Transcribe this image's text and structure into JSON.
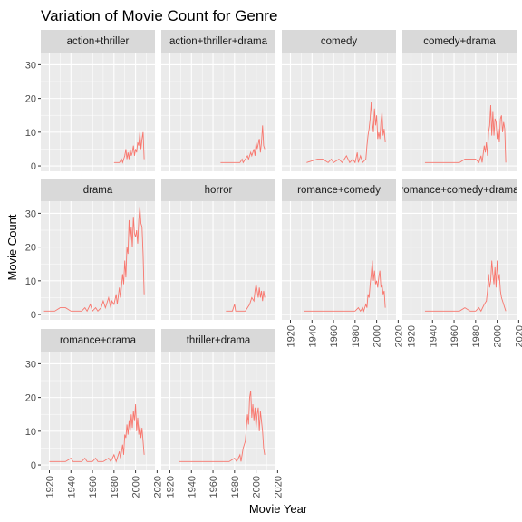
{
  "chart_data": {
    "type": "line",
    "title": "Variation of Movie Count for Genre",
    "xlabel": "Movie Year",
    "ylabel": "Movie Count",
    "xlim": [
      1912,
      2018
    ],
    "ylim": [
      -1.6,
      33.6
    ],
    "x_ticks": [
      1920,
      1940,
      1960,
      1980,
      2000,
      2020
    ],
    "y_ticks": [
      0,
      10,
      20,
      30
    ],
    "grid": true,
    "line_color": "#F8766D",
    "panel_bg": "#EBEBEB",
    "strip_bg": "#D9D9D9",
    "facets": [
      {
        "label": "action+thriller",
        "points": [
          [
            1980,
            1
          ],
          [
            1985,
            1
          ],
          [
            1987,
            2
          ],
          [
            1988,
            1
          ],
          [
            1990,
            3
          ],
          [
            1991,
            5
          ],
          [
            1992,
            2
          ],
          [
            1993,
            4
          ],
          [
            1994,
            2
          ],
          [
            1995,
            5
          ],
          [
            1996,
            3
          ],
          [
            1997,
            4
          ],
          [
            1998,
            6
          ],
          [
            1999,
            3
          ],
          [
            2000,
            5
          ],
          [
            2001,
            4
          ],
          [
            2002,
            7
          ],
          [
            2003,
            6
          ],
          [
            2004,
            10
          ],
          [
            2005,
            5
          ],
          [
            2006,
            8
          ],
          [
            2007,
            10
          ],
          [
            2008,
            2
          ]
        ]
      },
      {
        "label": "action+thriller+drama",
        "points": [
          [
            1967,
            1
          ],
          [
            1985,
            1
          ],
          [
            1987,
            2
          ],
          [
            1988,
            1
          ],
          [
            1990,
            2
          ],
          [
            1992,
            3
          ],
          [
            1993,
            2
          ],
          [
            1995,
            4
          ],
          [
            1996,
            3
          ],
          [
            1998,
            5
          ],
          [
            1999,
            3
          ],
          [
            2000,
            7
          ],
          [
            2001,
            5
          ],
          [
            2003,
            8
          ],
          [
            2004,
            4
          ],
          [
            2005,
            7
          ],
          [
            2006,
            12
          ],
          [
            2007,
            6
          ],
          [
            2008,
            5
          ]
        ]
      },
      {
        "label": "comedy",
        "points": [
          [
            1935,
            1
          ],
          [
            1945,
            2
          ],
          [
            1950,
            2
          ],
          [
            1955,
            1
          ],
          [
            1958,
            2
          ],
          [
            1960,
            1
          ],
          [
            1965,
            2
          ],
          [
            1968,
            1
          ],
          [
            1970,
            2
          ],
          [
            1972,
            3
          ],
          [
            1975,
            1
          ],
          [
            1978,
            2
          ],
          [
            1980,
            1
          ],
          [
            1982,
            4
          ],
          [
            1983,
            1
          ],
          [
            1985,
            3
          ],
          [
            1987,
            1
          ],
          [
            1990,
            2
          ],
          [
            1991,
            6
          ],
          [
            1992,
            9
          ],
          [
            1993,
            11
          ],
          [
            1994,
            14
          ],
          [
            1995,
            19
          ],
          [
            1996,
            13
          ],
          [
            1997,
            10
          ],
          [
            1998,
            17
          ],
          [
            1999,
            12
          ],
          [
            2000,
            15
          ],
          [
            2001,
            8
          ],
          [
            2002,
            10
          ],
          [
            2003,
            8
          ],
          [
            2004,
            13
          ],
          [
            2005,
            16
          ],
          [
            2006,
            9
          ],
          [
            2007,
            11
          ],
          [
            2008,
            7
          ]
        ]
      },
      {
        "label": "comedy+drama",
        "points": [
          [
            1933,
            1
          ],
          [
            1950,
            1
          ],
          [
            1955,
            1
          ],
          [
            1960,
            1
          ],
          [
            1965,
            1
          ],
          [
            1970,
            2
          ],
          [
            1975,
            2
          ],
          [
            1980,
            2
          ],
          [
            1983,
            1
          ],
          [
            1985,
            3
          ],
          [
            1986,
            1
          ],
          [
            1988,
            6
          ],
          [
            1989,
            4
          ],
          [
            1990,
            7
          ],
          [
            1991,
            3
          ],
          [
            1992,
            10
          ],
          [
            1993,
            12
          ],
          [
            1994,
            18
          ],
          [
            1995,
            9
          ],
          [
            1996,
            16
          ],
          [
            1997,
            9
          ],
          [
            1998,
            14
          ],
          [
            1999,
            13
          ],
          [
            2000,
            8
          ],
          [
            2001,
            11
          ],
          [
            2002,
            7
          ],
          [
            2003,
            14
          ],
          [
            2004,
            15
          ],
          [
            2005,
            10
          ],
          [
            2006,
            13
          ],
          [
            2007,
            11
          ],
          [
            2008,
            1
          ]
        ]
      },
      {
        "label": "drama",
        "points": [
          [
            1915,
            1
          ],
          [
            1920,
            1
          ],
          [
            1925,
            1
          ],
          [
            1930,
            2
          ],
          [
            1935,
            2
          ],
          [
            1940,
            1
          ],
          [
            1945,
            1
          ],
          [
            1950,
            1
          ],
          [
            1953,
            2
          ],
          [
            1955,
            1
          ],
          [
            1958,
            3
          ],
          [
            1960,
            1
          ],
          [
            1963,
            2
          ],
          [
            1965,
            1
          ],
          [
            1968,
            2
          ],
          [
            1970,
            4
          ],
          [
            1972,
            2
          ],
          [
            1975,
            5
          ],
          [
            1977,
            2
          ],
          [
            1978,
            4
          ],
          [
            1980,
            3
          ],
          [
            1982,
            6
          ],
          [
            1983,
            3
          ],
          [
            1985,
            8
          ],
          [
            1986,
            5
          ],
          [
            1988,
            12
          ],
          [
            1989,
            9
          ],
          [
            1990,
            16
          ],
          [
            1991,
            11
          ],
          [
            1992,
            20
          ],
          [
            1993,
            18
          ],
          [
            1994,
            28
          ],
          [
            1995,
            22
          ],
          [
            1996,
            26
          ],
          [
            1997,
            20
          ],
          [
            1998,
            29
          ],
          [
            1999,
            24
          ],
          [
            2000,
            23
          ],
          [
            2001,
            25
          ],
          [
            2002,
            21
          ],
          [
            2003,
            28
          ],
          [
            2004,
            32
          ],
          [
            2005,
            27
          ],
          [
            2006,
            26
          ],
          [
            2007,
            18
          ],
          [
            2008,
            6
          ]
        ]
      },
      {
        "label": "horror",
        "points": [
          [
            1972,
            1
          ],
          [
            1978,
            1
          ],
          [
            1980,
            3
          ],
          [
            1981,
            1
          ],
          [
            1985,
            1
          ],
          [
            1990,
            1
          ],
          [
            1992,
            2
          ],
          [
            1994,
            3
          ],
          [
            1996,
            5
          ],
          [
            1998,
            4
          ],
          [
            1999,
            7
          ],
          [
            2000,
            9
          ],
          [
            2001,
            7
          ],
          [
            2002,
            5
          ],
          [
            2003,
            8
          ],
          [
            2004,
            5
          ],
          [
            2005,
            7
          ],
          [
            2006,
            4
          ],
          [
            2007,
            7
          ],
          [
            2008,
            5
          ]
        ]
      },
      {
        "label": "romance+comedy",
        "points": [
          [
            1933,
            1
          ],
          [
            1940,
            1
          ],
          [
            1950,
            1
          ],
          [
            1960,
            1
          ],
          [
            1970,
            1
          ],
          [
            1978,
            1
          ],
          [
            1980,
            1
          ],
          [
            1983,
            2
          ],
          [
            1985,
            1
          ],
          [
            1987,
            2
          ],
          [
            1988,
            1
          ],
          [
            1990,
            3
          ],
          [
            1991,
            2
          ],
          [
            1992,
            6
          ],
          [
            1993,
            5
          ],
          [
            1994,
            9
          ],
          [
            1995,
            12
          ],
          [
            1996,
            16
          ],
          [
            1997,
            10
          ],
          [
            1998,
            13
          ],
          [
            1999,
            9
          ],
          [
            2000,
            10
          ],
          [
            2001,
            8
          ],
          [
            2002,
            11
          ],
          [
            2003,
            13
          ],
          [
            2004,
            8
          ],
          [
            2005,
            9
          ],
          [
            2006,
            6
          ],
          [
            2007,
            7
          ],
          [
            2008,
            2
          ]
        ]
      },
      {
        "label": "romance+comedy+drama",
        "points": [
          [
            1933,
            1
          ],
          [
            1945,
            1
          ],
          [
            1955,
            1
          ],
          [
            1965,
            1
          ],
          [
            1970,
            2
          ],
          [
            1975,
            1
          ],
          [
            1980,
            1
          ],
          [
            1983,
            2
          ],
          [
            1985,
            1
          ],
          [
            1988,
            3
          ],
          [
            1990,
            4
          ],
          [
            1991,
            7
          ],
          [
            1992,
            12
          ],
          [
            1993,
            8
          ],
          [
            1994,
            10
          ],
          [
            1995,
            16
          ],
          [
            1996,
            12
          ],
          [
            1997,
            9
          ],
          [
            1998,
            14
          ],
          [
            1999,
            8
          ],
          [
            2000,
            16
          ],
          [
            2001,
            10
          ],
          [
            2002,
            12
          ],
          [
            2003,
            7
          ],
          [
            2004,
            5
          ],
          [
            2005,
            4
          ],
          [
            2006,
            3
          ],
          [
            2007,
            2
          ],
          [
            2008,
            1
          ]
        ]
      },
      {
        "label": "romance+drama",
        "points": [
          [
            1920,
            1
          ],
          [
            1925,
            1
          ],
          [
            1935,
            1
          ],
          [
            1940,
            2
          ],
          [
            1942,
            1
          ],
          [
            1945,
            1
          ],
          [
            1950,
            1
          ],
          [
            1953,
            2
          ],
          [
            1955,
            1
          ],
          [
            1960,
            1
          ],
          [
            1963,
            2
          ],
          [
            1965,
            1
          ],
          [
            1970,
            1
          ],
          [
            1975,
            2
          ],
          [
            1977,
            1
          ],
          [
            1980,
            3
          ],
          [
            1982,
            1
          ],
          [
            1985,
            4
          ],
          [
            1986,
            2
          ],
          [
            1988,
            6
          ],
          [
            1989,
            3
          ],
          [
            1990,
            9
          ],
          [
            1991,
            8
          ],
          [
            1992,
            12
          ],
          [
            1993,
            9
          ],
          [
            1994,
            13
          ],
          [
            1995,
            10
          ],
          [
            1996,
            15
          ],
          [
            1997,
            11
          ],
          [
            1998,
            16
          ],
          [
            1999,
            13
          ],
          [
            2000,
            18
          ],
          [
            2001,
            10
          ],
          [
            2002,
            14
          ],
          [
            2003,
            9
          ],
          [
            2004,
            12
          ],
          [
            2005,
            8
          ],
          [
            2006,
            11
          ],
          [
            2007,
            7
          ],
          [
            2008,
            3
          ]
        ]
      },
      {
        "label": "thriller+drama",
        "points": [
          [
            1928,
            1
          ],
          [
            1940,
            1
          ],
          [
            1950,
            1
          ],
          [
            1960,
            1
          ],
          [
            1970,
            1
          ],
          [
            1975,
            1
          ],
          [
            1980,
            2
          ],
          [
            1982,
            1
          ],
          [
            1985,
            3
          ],
          [
            1986,
            1
          ],
          [
            1988,
            5
          ],
          [
            1990,
            7
          ],
          [
            1991,
            11
          ],
          [
            1992,
            15
          ],
          [
            1993,
            12
          ],
          [
            1994,
            20
          ],
          [
            1995,
            22
          ],
          [
            1996,
            14
          ],
          [
            1997,
            18
          ],
          [
            1998,
            13
          ],
          [
            1999,
            17
          ],
          [
            2000,
            11
          ],
          [
            2001,
            15
          ],
          [
            2002,
            17
          ],
          [
            2003,
            10
          ],
          [
            2004,
            16
          ],
          [
            2005,
            13
          ],
          [
            2006,
            10
          ],
          [
            2007,
            5
          ],
          [
            2008,
            3
          ]
        ]
      }
    ]
  }
}
